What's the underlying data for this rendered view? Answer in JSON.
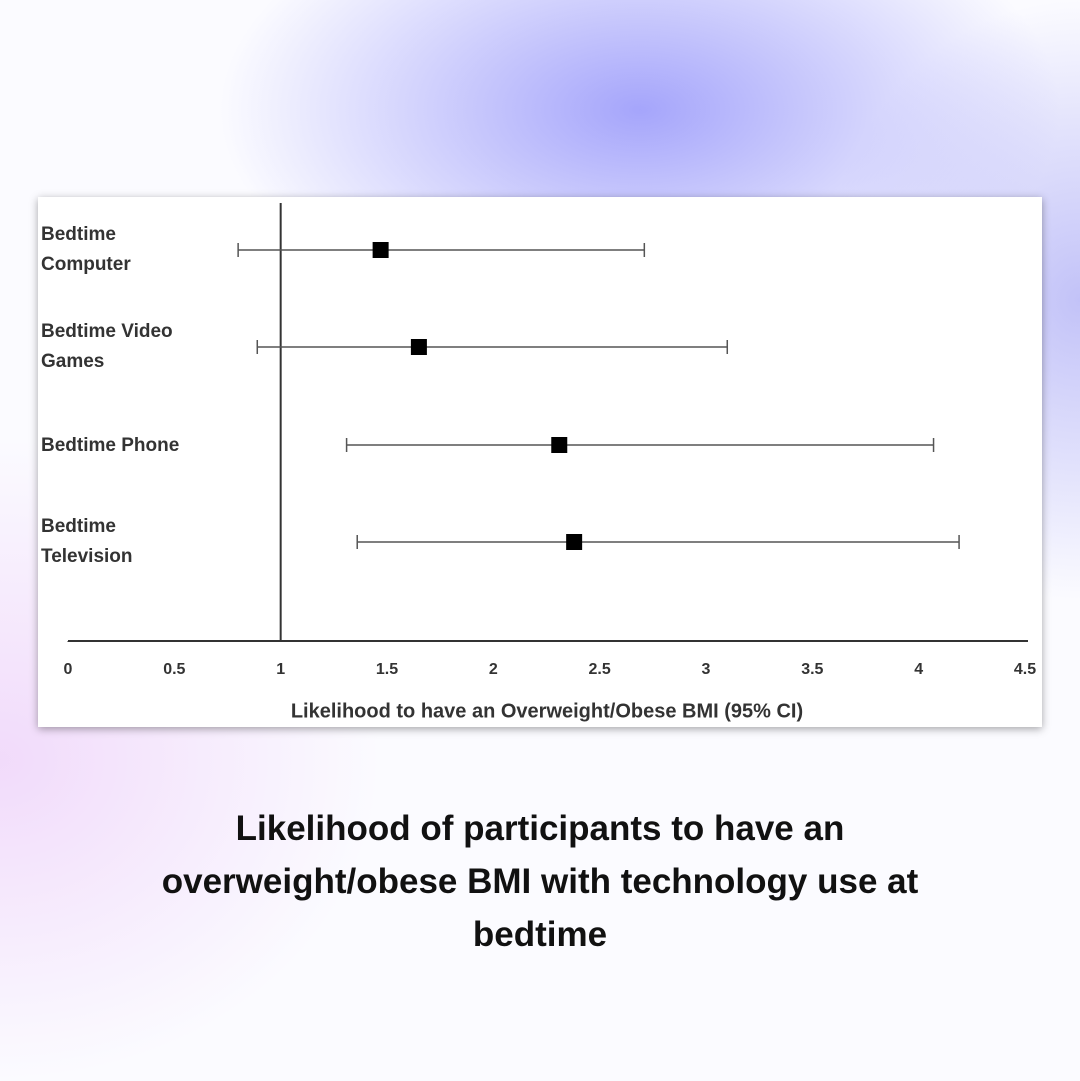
{
  "chart_data": {
    "type": "forest",
    "categories": [
      "Bedtime Computer",
      "Bedtime Video Games",
      "Bedtime Phone",
      "Bedtime Television"
    ],
    "values": [
      1.47,
      1.65,
      2.31,
      2.38
    ],
    "lower": [
      0.8,
      0.89,
      1.31,
      1.36
    ],
    "upper": [
      2.71,
      3.1,
      4.07,
      4.19
    ],
    "color": "#000000",
    "reference_x": 1,
    "xlabel": "Likelihood to have an Overweight/Obese BMI (95% CI)",
    "xlim": [
      0,
      4.5
    ],
    "xticks": [
      0,
      0.5,
      1,
      1.5,
      2,
      2.5,
      3,
      3.5,
      4,
      4.5
    ]
  },
  "caption": "Likelihood of participants to have an overweight/obese BMI with technology use at bedtime"
}
